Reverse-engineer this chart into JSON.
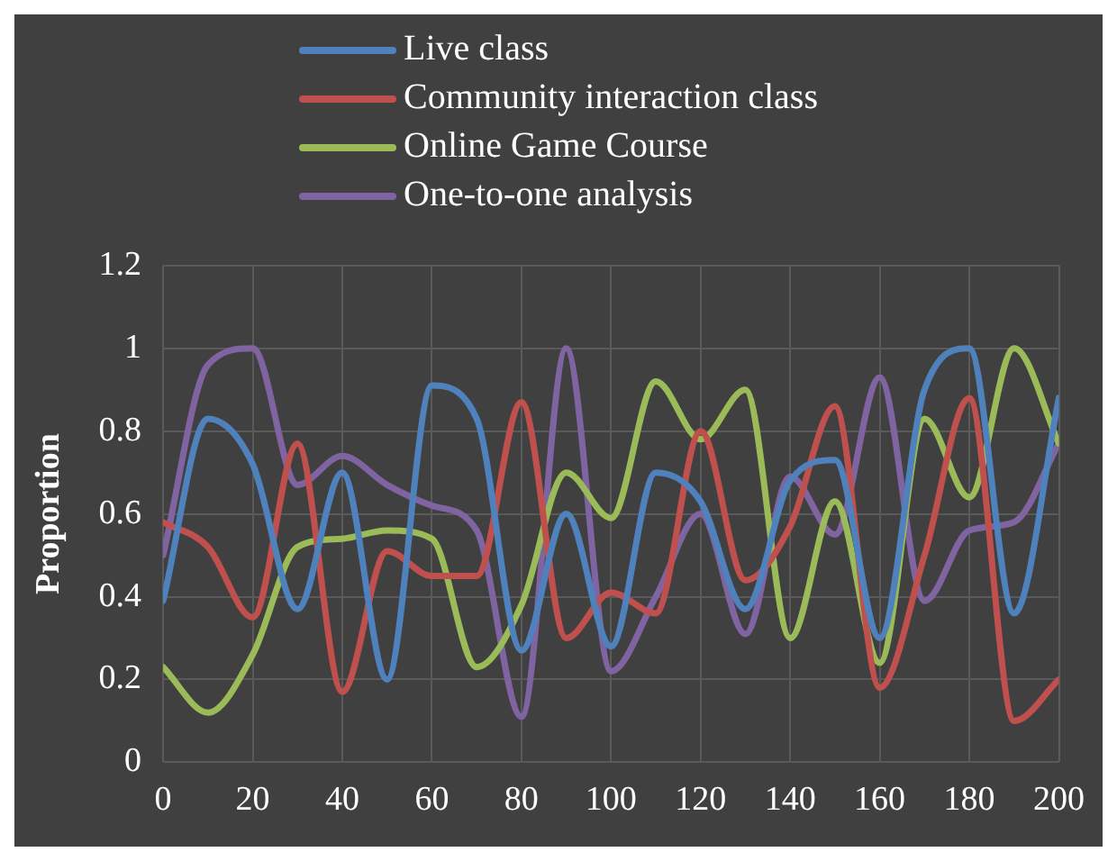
{
  "chart_data": {
    "type": "line",
    "ylabel": "Proportion",
    "x": [
      0,
      10,
      20,
      30,
      40,
      50,
      60,
      70,
      80,
      90,
      100,
      110,
      120,
      130,
      140,
      150,
      160,
      170,
      180,
      190,
      200
    ],
    "series": [
      {
        "name": "Live class",
        "color": "#4f81bd",
        "values": [
          0.39,
          0.83,
          0.72,
          0.37,
          0.7,
          0.2,
          0.91,
          0.83,
          0.27,
          0.6,
          0.28,
          0.7,
          0.63,
          0.37,
          0.68,
          0.73,
          0.3,
          0.9,
          1.0,
          0.36,
          0.88
        ]
      },
      {
        "name": "Community interaction class",
        "color": "#c0504d",
        "values": [
          0.58,
          0.52,
          0.35,
          0.77,
          0.17,
          0.51,
          0.45,
          0.45,
          0.87,
          0.3,
          0.41,
          0.36,
          0.8,
          0.44,
          0.57,
          0.86,
          0.18,
          0.5,
          0.88,
          0.1,
          0.2
        ]
      },
      {
        "name": "Online Game Course",
        "color": "#9bbb59",
        "values": [
          0.23,
          0.12,
          0.26,
          0.52,
          0.54,
          0.56,
          0.54,
          0.23,
          0.38,
          0.7,
          0.59,
          0.92,
          0.78,
          0.9,
          0.3,
          0.63,
          0.24,
          0.83,
          0.64,
          1.0,
          0.77
        ]
      },
      {
        "name": "One-to-one analysis",
        "color": "#8064a2",
        "values": [
          0.5,
          0.96,
          1.0,
          0.67,
          0.74,
          0.67,
          0.62,
          0.56,
          0.11,
          1.0,
          0.22,
          0.4,
          0.6,
          0.31,
          0.69,
          0.55,
          0.93,
          0.39,
          0.56,
          0.58,
          0.77
        ]
      }
    ],
    "xlim": [
      0,
      200
    ],
    "xticks": [
      0,
      20,
      40,
      60,
      80,
      100,
      120,
      140,
      160,
      180,
      200
    ],
    "ylim": [
      0,
      1.2
    ],
    "yticks": [
      0,
      0.2,
      0.4,
      0.6,
      0.8,
      1,
      1.2
    ],
    "grid": true,
    "legend": "top",
    "marker": "none",
    "line_style": "solid"
  }
}
